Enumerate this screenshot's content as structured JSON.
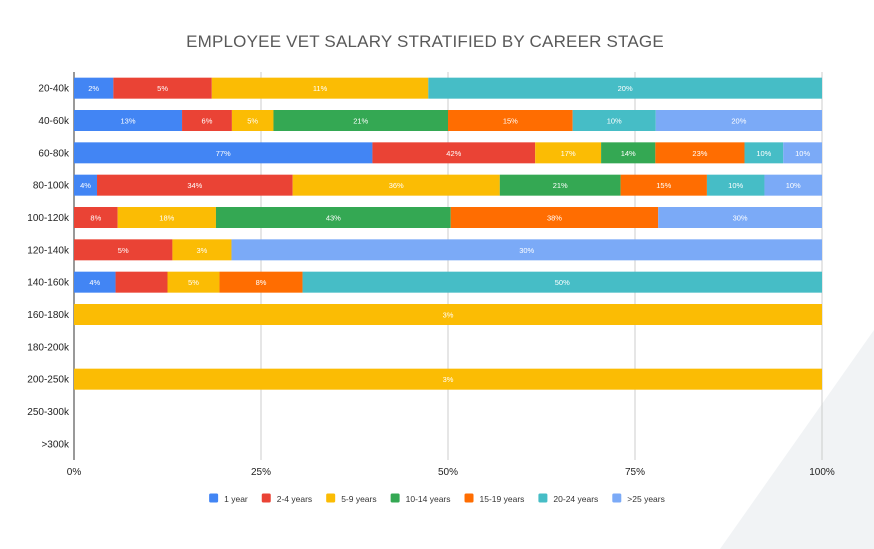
{
  "chart_data": {
    "type": "bar",
    "orientation": "horizontal",
    "stacked": "percent",
    "title": "EMPLOYEE VET SALARY STRATIFIED BY CAREER STAGE",
    "xlabel": "",
    "ylabel": "",
    "xlim": [
      0,
      100
    ],
    "x_ticks": [
      "0%",
      "25%",
      "50%",
      "75%",
      "100%"
    ],
    "grid": true,
    "legend_position": "bottom",
    "categories": [
      "20-40k",
      "40-60k",
      "60-80k",
      "80-100k",
      "100-120k",
      "120-140k",
      "140-160k",
      "160-180k",
      "180-200k",
      "200-250k",
      "250-300k",
      ">300k"
    ],
    "series": [
      {
        "name": "1 year",
        "color": "#4285F4",
        "values": [
          2,
          13,
          77,
          4,
          null,
          null,
          4,
          null,
          null,
          null,
          null,
          null
        ],
        "labels": [
          "2%",
          "13%",
          "77%",
          "4%",
          "",
          "",
          "4%",
          "",
          "",
          "",
          "",
          ""
        ]
      },
      {
        "name": "2-4 years",
        "color": "#EA4335",
        "values": [
          5,
          6,
          42,
          34,
          8,
          5,
          5,
          null,
          null,
          null,
          null,
          null
        ],
        "labels": [
          "5%",
          "6%",
          "42%",
          "34%",
          "8%",
          "5%",
          "",
          "",
          "",
          "",
          "",
          ""
        ]
      },
      {
        "name": "5-9 years",
        "color": "#FBBC04",
        "values": [
          11,
          5,
          17,
          36,
          18,
          3,
          5,
          3,
          null,
          3,
          null,
          null
        ],
        "labels": [
          "11%",
          "5%",
          "17%",
          "36%",
          "18%",
          "3%",
          "5%",
          "3%",
          "",
          "3%",
          "",
          ""
        ]
      },
      {
        "name": "10-14 years",
        "color": "#34A853",
        "values": [
          null,
          21,
          14,
          21,
          43,
          null,
          null,
          null,
          null,
          null,
          null,
          null
        ],
        "labels": [
          "",
          "21%",
          "14%",
          "21%",
          "43%",
          "",
          "",
          "",
          "",
          "",
          "",
          ""
        ]
      },
      {
        "name": "15-19 years",
        "color": "#FF6D01",
        "values": [
          null,
          15,
          23,
          15,
          38,
          null,
          8,
          null,
          null,
          null,
          null,
          null
        ],
        "labels": [
          "",
          "15%",
          "23%",
          "15%",
          "38%",
          "",
          "8%",
          "",
          "",
          "",
          "",
          ""
        ]
      },
      {
        "name": "20-24 years",
        "color": "#46BDC6",
        "values": [
          20,
          10,
          10,
          10,
          null,
          null,
          50,
          null,
          null,
          null,
          null,
          null
        ],
        "labels": [
          "20%",
          "10%",
          "10%",
          "10%",
          "",
          "",
          "50%",
          "",
          "",
          "",
          "",
          ""
        ]
      },
      {
        "name": ">25 years",
        "color": "#7BAAF7",
        "values": [
          null,
          20,
          10,
          10,
          30,
          30,
          null,
          null,
          null,
          null,
          null,
          null
        ],
        "labels": [
          "",
          "20%",
          "10%",
          "10%",
          "30%",
          "30%",
          "",
          "",
          "",
          "",
          "",
          ""
        ]
      }
    ]
  }
}
